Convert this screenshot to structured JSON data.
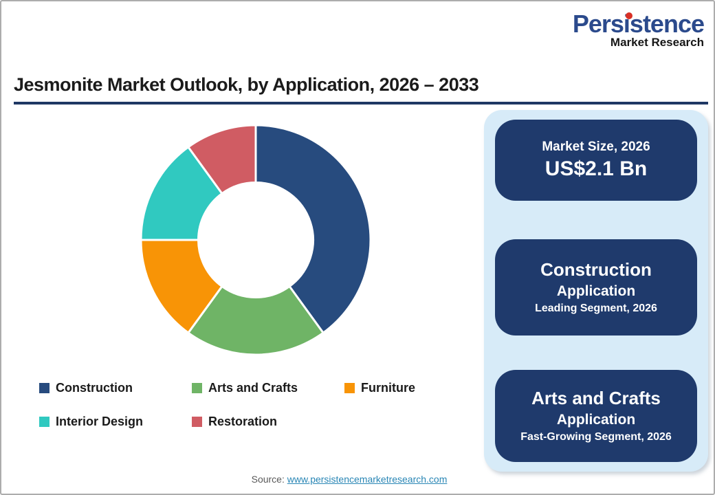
{
  "logo": {
    "name": "Persistence",
    "subtitle": "Market Research",
    "brand_color": "#2B4A8C",
    "dot_color": "#D93025"
  },
  "title": "Jesmonite Market Outlook, by Application, 2026 – 2033",
  "title_underline_color": "#1F3864",
  "chart_data": {
    "type": "pie",
    "subtype": "donut",
    "categories": [
      "Construction",
      "Arts and Crafts",
      "Furniture",
      "Interior Design",
      "Restoration"
    ],
    "values": [
      40,
      20,
      15,
      15,
      10
    ],
    "value_format": "percent-share-estimated",
    "colors": [
      "#274B7E",
      "#6FB466",
      "#F89406",
      "#30C9C0",
      "#D05C63"
    ],
    "start_angle_deg": 0,
    "direction": "clockwise",
    "inner_radius_ratio": 0.5,
    "segment_gap_color": "#FFFFFF",
    "legend_position": "bottom-left",
    "title": "Jesmonite Market Outlook, by Application, 2026 – 2033"
  },
  "panel": {
    "background": "#D7EBF8",
    "card_background": "#1F3A6C",
    "cards": [
      {
        "title": "Market Size, 2026",
        "value": "US$2.1 Bn"
      },
      {
        "title": "Construction",
        "subtitle": "Application",
        "note": "Leading Segment, 2026"
      },
      {
        "title": "Arts and Crafts",
        "subtitle": "Application",
        "note": "Fast-Growing Segment, 2026"
      }
    ]
  },
  "footer": {
    "source_label": "Source:",
    "source_link": "www.persistencemarketresearch.com"
  }
}
